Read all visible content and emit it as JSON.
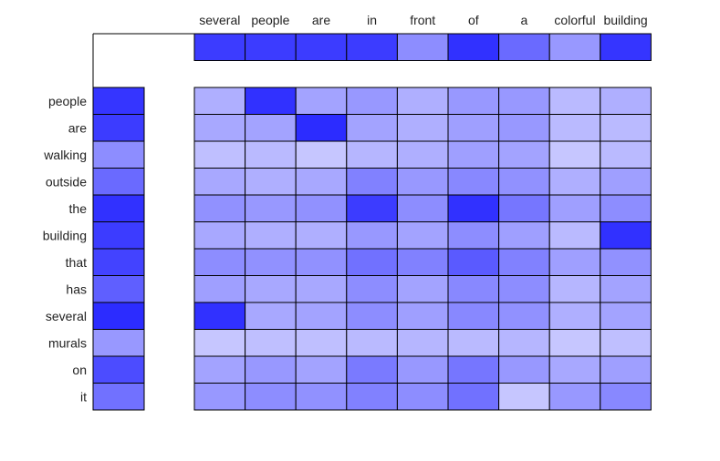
{
  "chart_data": {
    "type": "heatmap",
    "title": "",
    "xlabel": "",
    "ylabel": "",
    "columns": [
      "several",
      "people",
      "are",
      "in",
      "front",
      "of",
      "a",
      "colorful",
      "building"
    ],
    "rows": [
      "people",
      "are",
      "walking",
      "outside",
      "the",
      "building",
      "that",
      "has",
      "several",
      "murals",
      "on",
      "it"
    ],
    "column_summary": [
      0.85,
      0.85,
      0.85,
      0.85,
      0.5,
      0.9,
      0.65,
      0.45,
      0.88
    ],
    "row_summary": [
      0.88,
      0.85,
      0.5,
      0.65,
      0.9,
      0.85,
      0.82,
      0.7,
      0.92,
      0.45,
      0.78,
      0.62
    ],
    "values": [
      [
        0.35,
        0.9,
        0.4,
        0.45,
        0.35,
        0.45,
        0.45,
        0.3,
        0.35
      ],
      [
        0.38,
        0.4,
        0.92,
        0.4,
        0.35,
        0.42,
        0.45,
        0.3,
        0.3
      ],
      [
        0.28,
        0.3,
        0.25,
        0.32,
        0.35,
        0.42,
        0.4,
        0.25,
        0.3
      ],
      [
        0.38,
        0.35,
        0.38,
        0.55,
        0.45,
        0.52,
        0.48,
        0.35,
        0.42
      ],
      [
        0.48,
        0.45,
        0.48,
        0.85,
        0.5,
        0.9,
        0.6,
        0.42,
        0.5
      ],
      [
        0.38,
        0.35,
        0.35,
        0.45,
        0.4,
        0.5,
        0.42,
        0.3,
        0.9
      ],
      [
        0.5,
        0.48,
        0.48,
        0.62,
        0.55,
        0.72,
        0.55,
        0.42,
        0.48
      ],
      [
        0.42,
        0.38,
        0.38,
        0.5,
        0.4,
        0.52,
        0.5,
        0.32,
        0.4
      ],
      [
        0.9,
        0.38,
        0.4,
        0.5,
        0.42,
        0.52,
        0.48,
        0.35,
        0.4
      ],
      [
        0.25,
        0.28,
        0.28,
        0.3,
        0.32,
        0.3,
        0.32,
        0.25,
        0.28
      ],
      [
        0.4,
        0.45,
        0.4,
        0.58,
        0.45,
        0.6,
        0.45,
        0.38,
        0.42
      ],
      [
        0.45,
        0.5,
        0.48,
        0.55,
        0.5,
        0.62,
        0.25,
        0.45,
        0.52
      ]
    ],
    "color_low": "#ffffff",
    "color_high": "#1a1aff",
    "grid": false,
    "legend": "none"
  }
}
